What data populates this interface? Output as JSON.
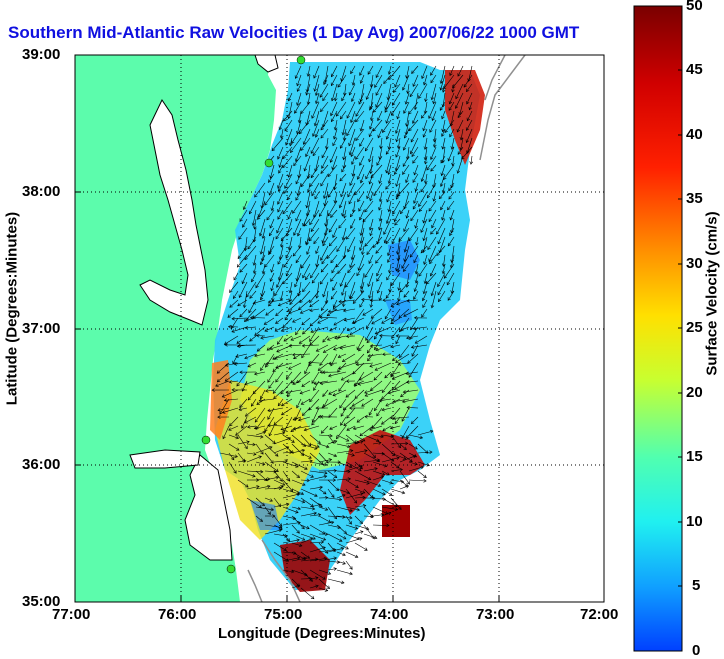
{
  "title": "Southern Mid-Atlantic Raw Velocities (1 Day Avg) 2007/06/22 1000 GMT",
  "xlabel": "Longitude (Degrees:Minutes)",
  "ylabel": "Latitude (Degrees:Minutes)",
  "x_ticks": [
    "77:00",
    "76:00",
    "75:00",
    "74:00",
    "73:00",
    "72:00"
  ],
  "y_ticks": [
    "39:00",
    "38:00",
    "37:00",
    "36:00",
    "35:00"
  ],
  "colorbar": {
    "label": "Surface Velocity (cm/s)",
    "ticks": [
      "50",
      "45",
      "40",
      "35",
      "30",
      "25",
      "20",
      "15",
      "10",
      "5",
      "0"
    ],
    "min": 0,
    "max": 50,
    "colormap": [
      "#0040ff",
      "#00c8ff",
      "#40ffc0",
      "#c0ff40",
      "#ffff00",
      "#ff8000",
      "#ff0000",
      "#800000"
    ]
  },
  "colors": {
    "land": "#5cfcac",
    "water": "#ffffff",
    "title": "#1010e0",
    "station": "#33dd33"
  },
  "map": {
    "xlim": [
      "77:00",
      "72:00"
    ],
    "ylim": [
      "35:00",
      "39:00"
    ],
    "grid": true,
    "stations": 4
  }
}
